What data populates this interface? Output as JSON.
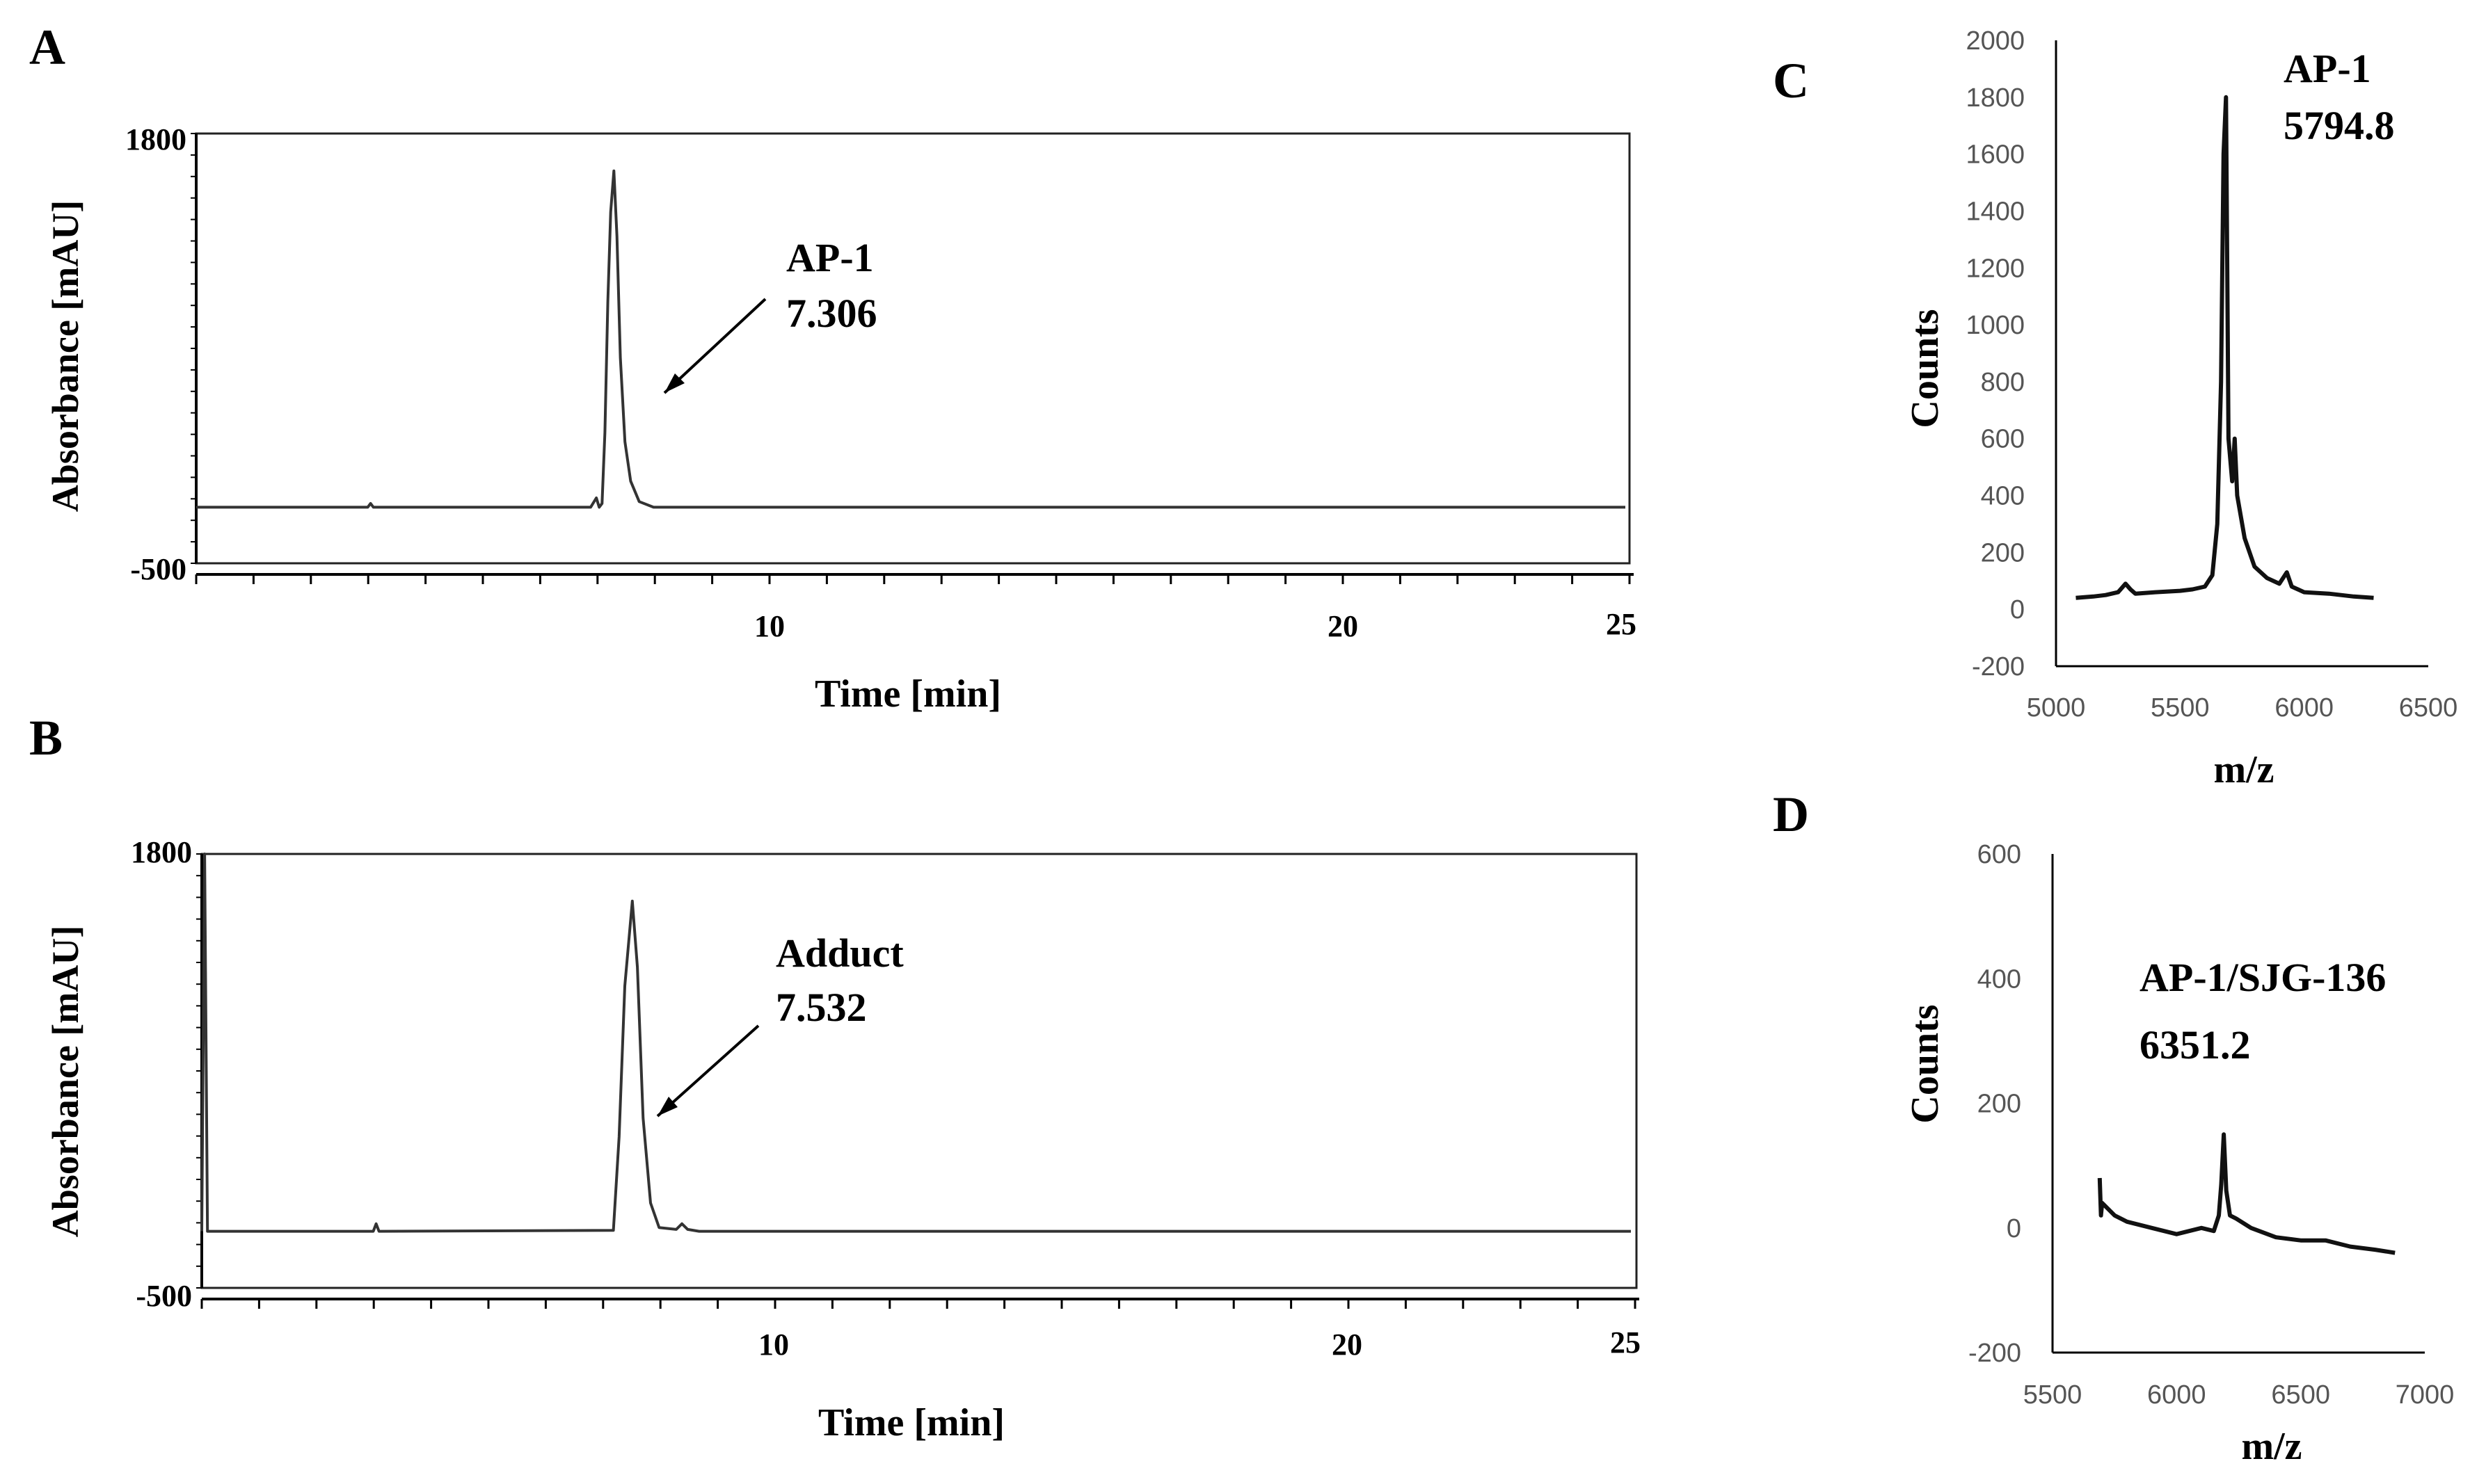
{
  "chart_data": [
    {
      "panel": "A",
      "type": "line",
      "title": "",
      "xlabel": "Time [min]",
      "ylabel": "Absorbance [mAU]",
      "xlim": [
        0,
        25
      ],
      "ylim": [
        -500,
        1800
      ],
      "x_tick_labels": [
        "10",
        "20",
        "25"
      ],
      "y_tick_labels": [
        "1800",
        "-500"
      ],
      "baseline": -200,
      "series": [
        {
          "name": "chromatogram",
          "x": [
            0,
            3.0,
            3.05,
            3.1,
            6.9,
            7.0,
            7.05,
            7.1,
            7.15,
            7.2,
            7.25,
            7.306,
            7.36,
            7.42,
            7.5,
            7.6,
            7.75,
            8.0,
            25
          ],
          "y": [
            -200,
            -200,
            -180,
            -200,
            -200,
            -150,
            -200,
            -180,
            200,
            900,
            1380,
            1600,
            1250,
            600,
            150,
            -60,
            -170,
            -200,
            -200
          ]
        }
      ],
      "annotation": {
        "label": "AP-1",
        "value": "7.306"
      }
    },
    {
      "panel": "B",
      "type": "line",
      "title": "",
      "xlabel": "Time [min]",
      "ylabel": "Absorbance [mAU]",
      "xlim": [
        0,
        25
      ],
      "ylim": [
        -500,
        1800
      ],
      "x_tick_labels": [
        "10",
        "20",
        "25"
      ],
      "y_tick_labels": [
        "1800",
        "-500"
      ],
      "baseline": -200,
      "series": [
        {
          "name": "chromatogram",
          "x": [
            0,
            0.05,
            0.1,
            3.0,
            3.05,
            3.1,
            7.2,
            7.3,
            7.4,
            7.532,
            7.62,
            7.72,
            7.85,
            8.0,
            8.3,
            8.4,
            8.5,
            8.7,
            25
          ],
          "y": [
            -200,
            1800,
            -200,
            -200,
            -160,
            -200,
            -195,
            300,
            1100,
            1550,
            1200,
            400,
            -50,
            -180,
            -190,
            -160,
            -190,
            -200,
            -200
          ]
        }
      ],
      "annotation": {
        "label": "Adduct",
        "value": "7.532"
      }
    },
    {
      "panel": "C",
      "type": "line",
      "title": "",
      "xlabel": "m/z",
      "ylabel": "Counts",
      "xlim": [
        5000,
        6500
      ],
      "ylim": [
        -200,
        2000
      ],
      "x_ticks": [
        5000,
        5500,
        6000,
        6500
      ],
      "y_ticks": [
        -200,
        0,
        200,
        400,
        600,
        800,
        1000,
        1200,
        1400,
        1600,
        1800,
        2000
      ],
      "series": [
        {
          "name": "spectrum",
          "x": [
            5080,
            5150,
            5200,
            5250,
            5280,
            5300,
            5320,
            5400,
            5500,
            5550,
            5600,
            5630,
            5650,
            5665,
            5675,
            5685,
            5695,
            5710,
            5720,
            5730,
            5760,
            5800,
            5850,
            5900,
            5930,
            5950,
            6000,
            6100,
            6200,
            6280
          ],
          "y": [
            40,
            45,
            50,
            60,
            90,
            70,
            55,
            60,
            65,
            70,
            80,
            120,
            300,
            800,
            1600,
            1800,
            600,
            450,
            600,
            400,
            250,
            150,
            110,
            90,
            130,
            80,
            60,
            55,
            45,
            40
          ]
        }
      ],
      "annotation": {
        "label": "AP-1",
        "value": "5794.8"
      }
    },
    {
      "panel": "D",
      "type": "line",
      "title": "",
      "xlabel": "m/z",
      "ylabel": "Counts",
      "xlim": [
        5500,
        7000
      ],
      "ylim": [
        -200,
        600
      ],
      "x_ticks": [
        5500,
        6000,
        6500,
        7000
      ],
      "y_ticks": [
        -200,
        0,
        200,
        400,
        600
      ],
      "series": [
        {
          "name": "spectrum",
          "x": [
            5690,
            5695,
            5700,
            5750,
            5800,
            5900,
            6000,
            6100,
            6150,
            6170,
            6180,
            6190,
            6200,
            6215,
            6240,
            6300,
            6400,
            6500,
            6600,
            6700,
            6800,
            6880
          ],
          "y": [
            80,
            20,
            40,
            20,
            10,
            0,
            -10,
            0,
            -5,
            20,
            70,
            150,
            60,
            20,
            15,
            0,
            -15,
            -20,
            -20,
            -30,
            -35,
            -40
          ]
        }
      ],
      "annotation": {
        "label": "AP-1/SJG-136",
        "value": "6351.2"
      }
    }
  ]
}
